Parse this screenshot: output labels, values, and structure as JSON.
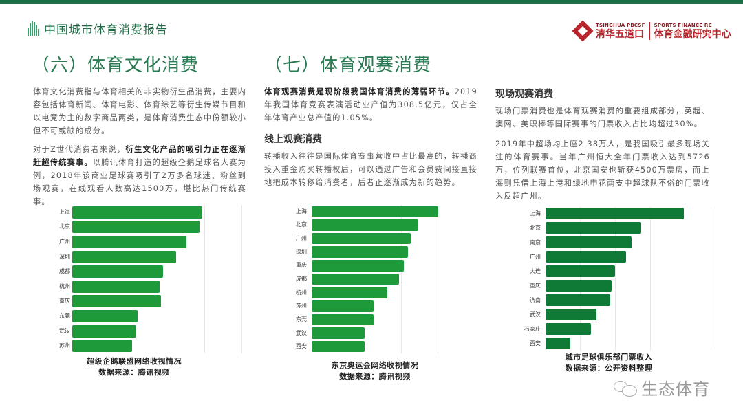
{
  "header": {
    "brand_title": "中国城市体育消费报告",
    "logo": {
      "left_small": "TSINGHUA PBCSF",
      "left_big": "清华五道口",
      "right_small": "SPORTS FINANCE RC",
      "right_big": "体育金融研究中心"
    }
  },
  "sections": {
    "culture": {
      "title": "（六）体育文化消费",
      "para1": "体育文化消费指与体育相关的非实物衍生品消费，主要内容包括体育新闻、体育电影、体育综艺等衍生传媒节目和以电竞为主的数字商品两类，是体育消费生态中份额较小但不可或缺的成分。",
      "para2_pre": "对于Z世代消费者来说，",
      "para2_bold": "衍生文化产品的吸引力正在逐渐赶超传统赛事。",
      "para2_post": "以腾讯体育打造的超级企鹅足球名人赛为例，2018年该商业足球赛吸引了2万多名球迷、粉丝到场观赛，在线观看人数高达1500万，堪比热门传统赛事。"
    },
    "spectator": {
      "title": "（七）体育观赛消费",
      "intro_bold": "体育观赛消费是现阶段我国体育消费的薄弱环节。",
      "intro_rest": "2019年我国体育竞赛表演活动业产值为308.5亿元，仅占全年体育产业总产值的1.05%。",
      "online_heading": "线上观赛消费",
      "online_para": "转播收入往往是国际体育赛事营收中占比最高的，转播商投入重金购买转播权后，可以通过广告和会员费间接直接地把成本转移给消费者，后者正逐渐成为新的趋势。"
    },
    "live": {
      "heading": "现场观赛消费",
      "para1": "现场门票消费也是体育观赛消费的重要组成部分，英超、澳网、美职棒等国际赛事的门票收入占比均超过30%。",
      "para2": "2019年中超场均上座2.38万人，是我国吸引最多现场关注的体育赛事。当年广州恒大全年门票收入达到5726万，位列联赛首位，北京国安也斩获4500万票房，而上海则凭借上海上港和绿地申花两支中超球队不俗的门票收入反超广州。"
    }
  },
  "colors": {
    "brand_green": "#1f6b45",
    "title_green": "#2a7a52",
    "bar_green_1": "#1e9a3a",
    "bar_green_2": "#1e9a3a",
    "bar_green_3": "#0f7a36",
    "logo_red": "#b8242b"
  },
  "chart_data": [
    {
      "type": "bar",
      "orientation": "horizontal",
      "title": "超级企鹅联盟网络收视情况",
      "source": "数据来源：腾讯视频",
      "categories": [
        "上海",
        "北京",
        "广州",
        "深圳",
        "成都",
        "杭州",
        "重庆",
        "东莞",
        "武汉",
        "苏州"
      ],
      "values": [
        100,
        98,
        88,
        80,
        70,
        67,
        68,
        50,
        49,
        46
      ],
      "unit": "relative (no axis values shown)",
      "grid": true
    },
    {
      "type": "bar",
      "orientation": "horizontal",
      "title": "东京奥运会网络收视情况",
      "source": "数据来源：腾讯视频",
      "categories": [
        "上海",
        "北京",
        "广州",
        "深圳",
        "重庆",
        "成都",
        "杭州",
        "苏州",
        "东莞",
        "武汉",
        "西安"
      ],
      "values": [
        100,
        84,
        78,
        76,
        73,
        69,
        60,
        49,
        49,
        42,
        42
      ],
      "unit": "relative (no axis values shown)",
      "grid": true
    },
    {
      "type": "bar",
      "orientation": "horizontal",
      "title": "城市足球俱乐部门票收入",
      "source": "数据来源：公开资料整理",
      "categories": [
        "上海",
        "北京",
        "南京",
        "广州",
        "大连",
        "重庆",
        "济南",
        "武汉",
        "石家庄",
        "西安"
      ],
      "values": [
        100,
        69,
        62,
        58,
        50,
        48,
        47,
        37,
        33,
        18
      ],
      "unit": "relative (no axis values shown)",
      "grid": true
    }
  ],
  "watermark": {
    "text": "生态体育"
  }
}
